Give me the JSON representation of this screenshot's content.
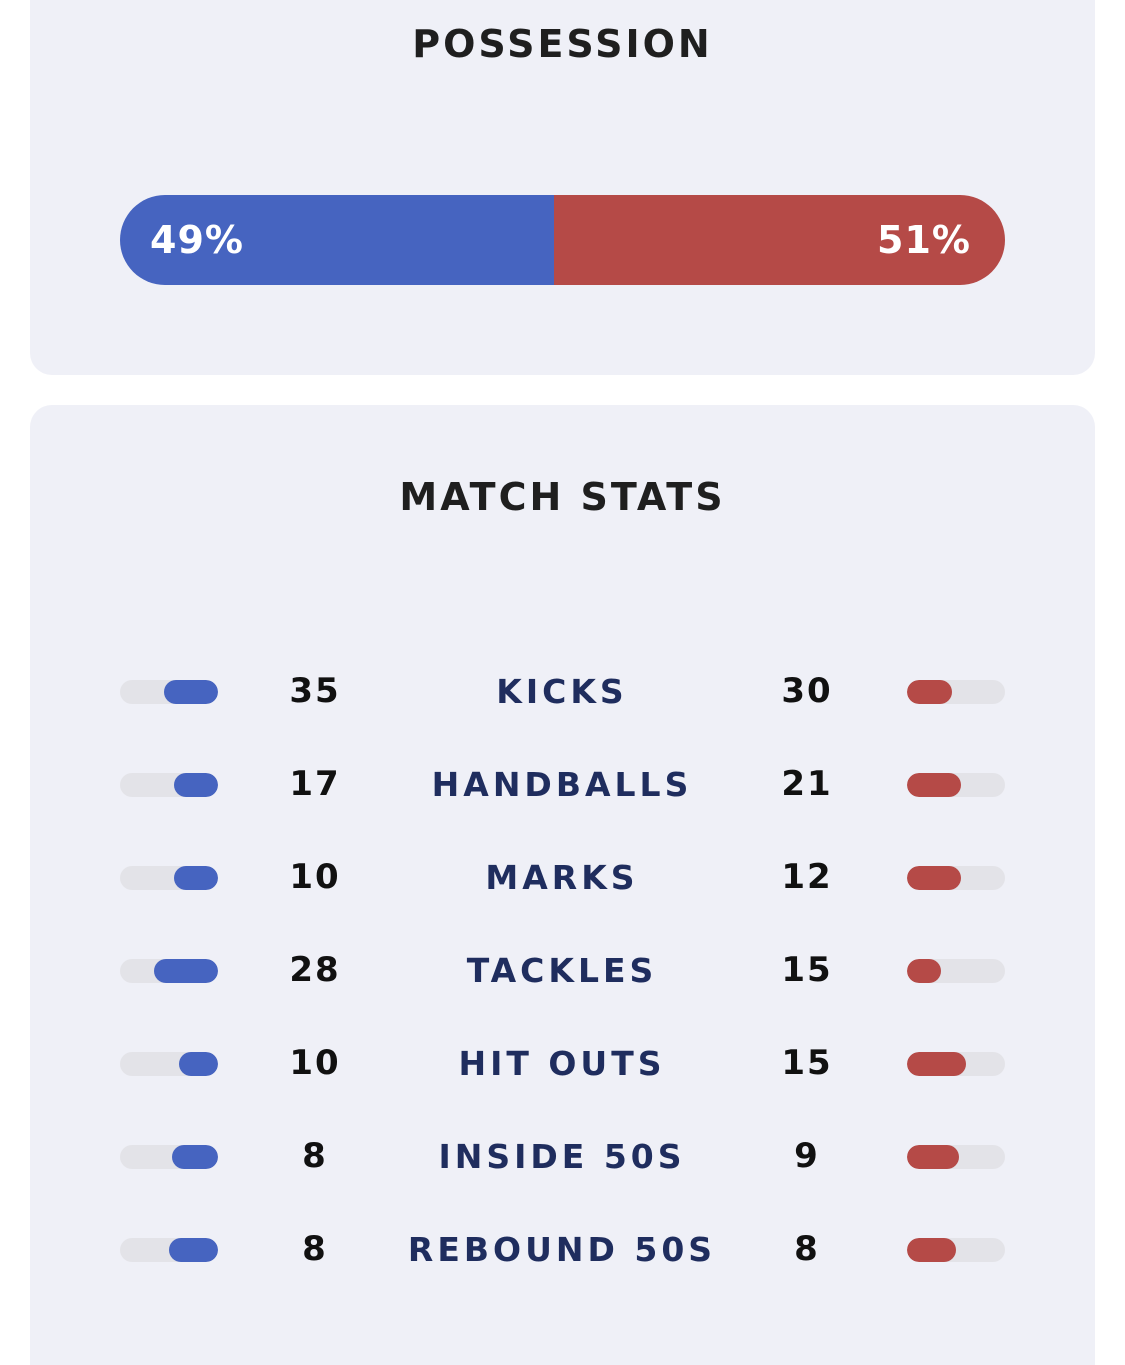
{
  "possession": {
    "title": "POSSESSION",
    "home_label": "49%",
    "away_label": "51%",
    "home_share": 0.49,
    "colors": {
      "home": "#4664c0",
      "away": "#b54a47"
    }
  },
  "match_stats": {
    "title": "MATCH STATS",
    "rows": [
      {
        "label": "KICKS",
        "home": "35",
        "away": "30",
        "home_level": 0.55,
        "away_level": 0.46
      },
      {
        "label": "HANDBALLS",
        "home": "17",
        "away": "21",
        "home_level": 0.45,
        "away_level": 0.55
      },
      {
        "label": "MARKS",
        "home": "10",
        "away": "12",
        "home_level": 0.45,
        "away_level": 0.55
      },
      {
        "label": "TACKLES",
        "home": "28",
        "away": "15",
        "home_level": 0.65,
        "away_level": 0.35
      },
      {
        "label": "HIT OUTS",
        "home": "10",
        "away": "15",
        "home_level": 0.4,
        "away_level": 0.6
      },
      {
        "label": "INSIDE 50S",
        "home": "8",
        "away": "9",
        "home_level": 0.47,
        "away_level": 0.53
      },
      {
        "label": "REBOUND 50S",
        "home": "8",
        "away": "8",
        "home_level": 0.5,
        "away_level": 0.5
      }
    ]
  }
}
